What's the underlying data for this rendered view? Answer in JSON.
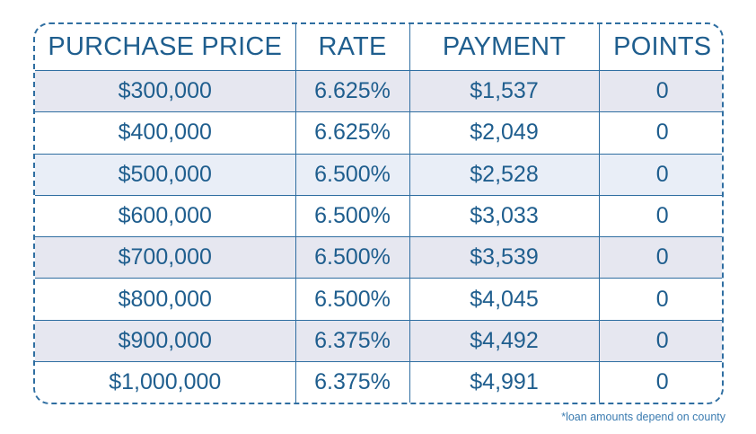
{
  "table": {
    "headers": [
      "PURCHASE PRICE",
      "RATE",
      "PAYMENT",
      "POINTS"
    ],
    "rows": [
      [
        "$300,000",
        "6.625%",
        "$1,537",
        "0"
      ],
      [
        "$400,000",
        "6.625%",
        "$2,049",
        "0"
      ],
      [
        "$500,000",
        "6.500%",
        "$2,528",
        "0"
      ],
      [
        "$600,000",
        "6.500%",
        "$3,033",
        "0"
      ],
      [
        "$700,000",
        "6.500%",
        "$3,539",
        "0"
      ],
      [
        "$800,000",
        "6.500%",
        "$4,045",
        "0"
      ],
      [
        "$900,000",
        "6.375%",
        "$4,492",
        "0"
      ],
      [
        "$1,000,000",
        "6.375%",
        "$4,991",
        "0"
      ]
    ]
  },
  "footnote": "*loan amounts depend on county",
  "colors": {
    "border": "#2f6ea1",
    "text": "#1f5e8e",
    "row_shaded": "#e6e7f0",
    "row_light_blue": "#e9eef7",
    "row_white": "#ffffff"
  }
}
